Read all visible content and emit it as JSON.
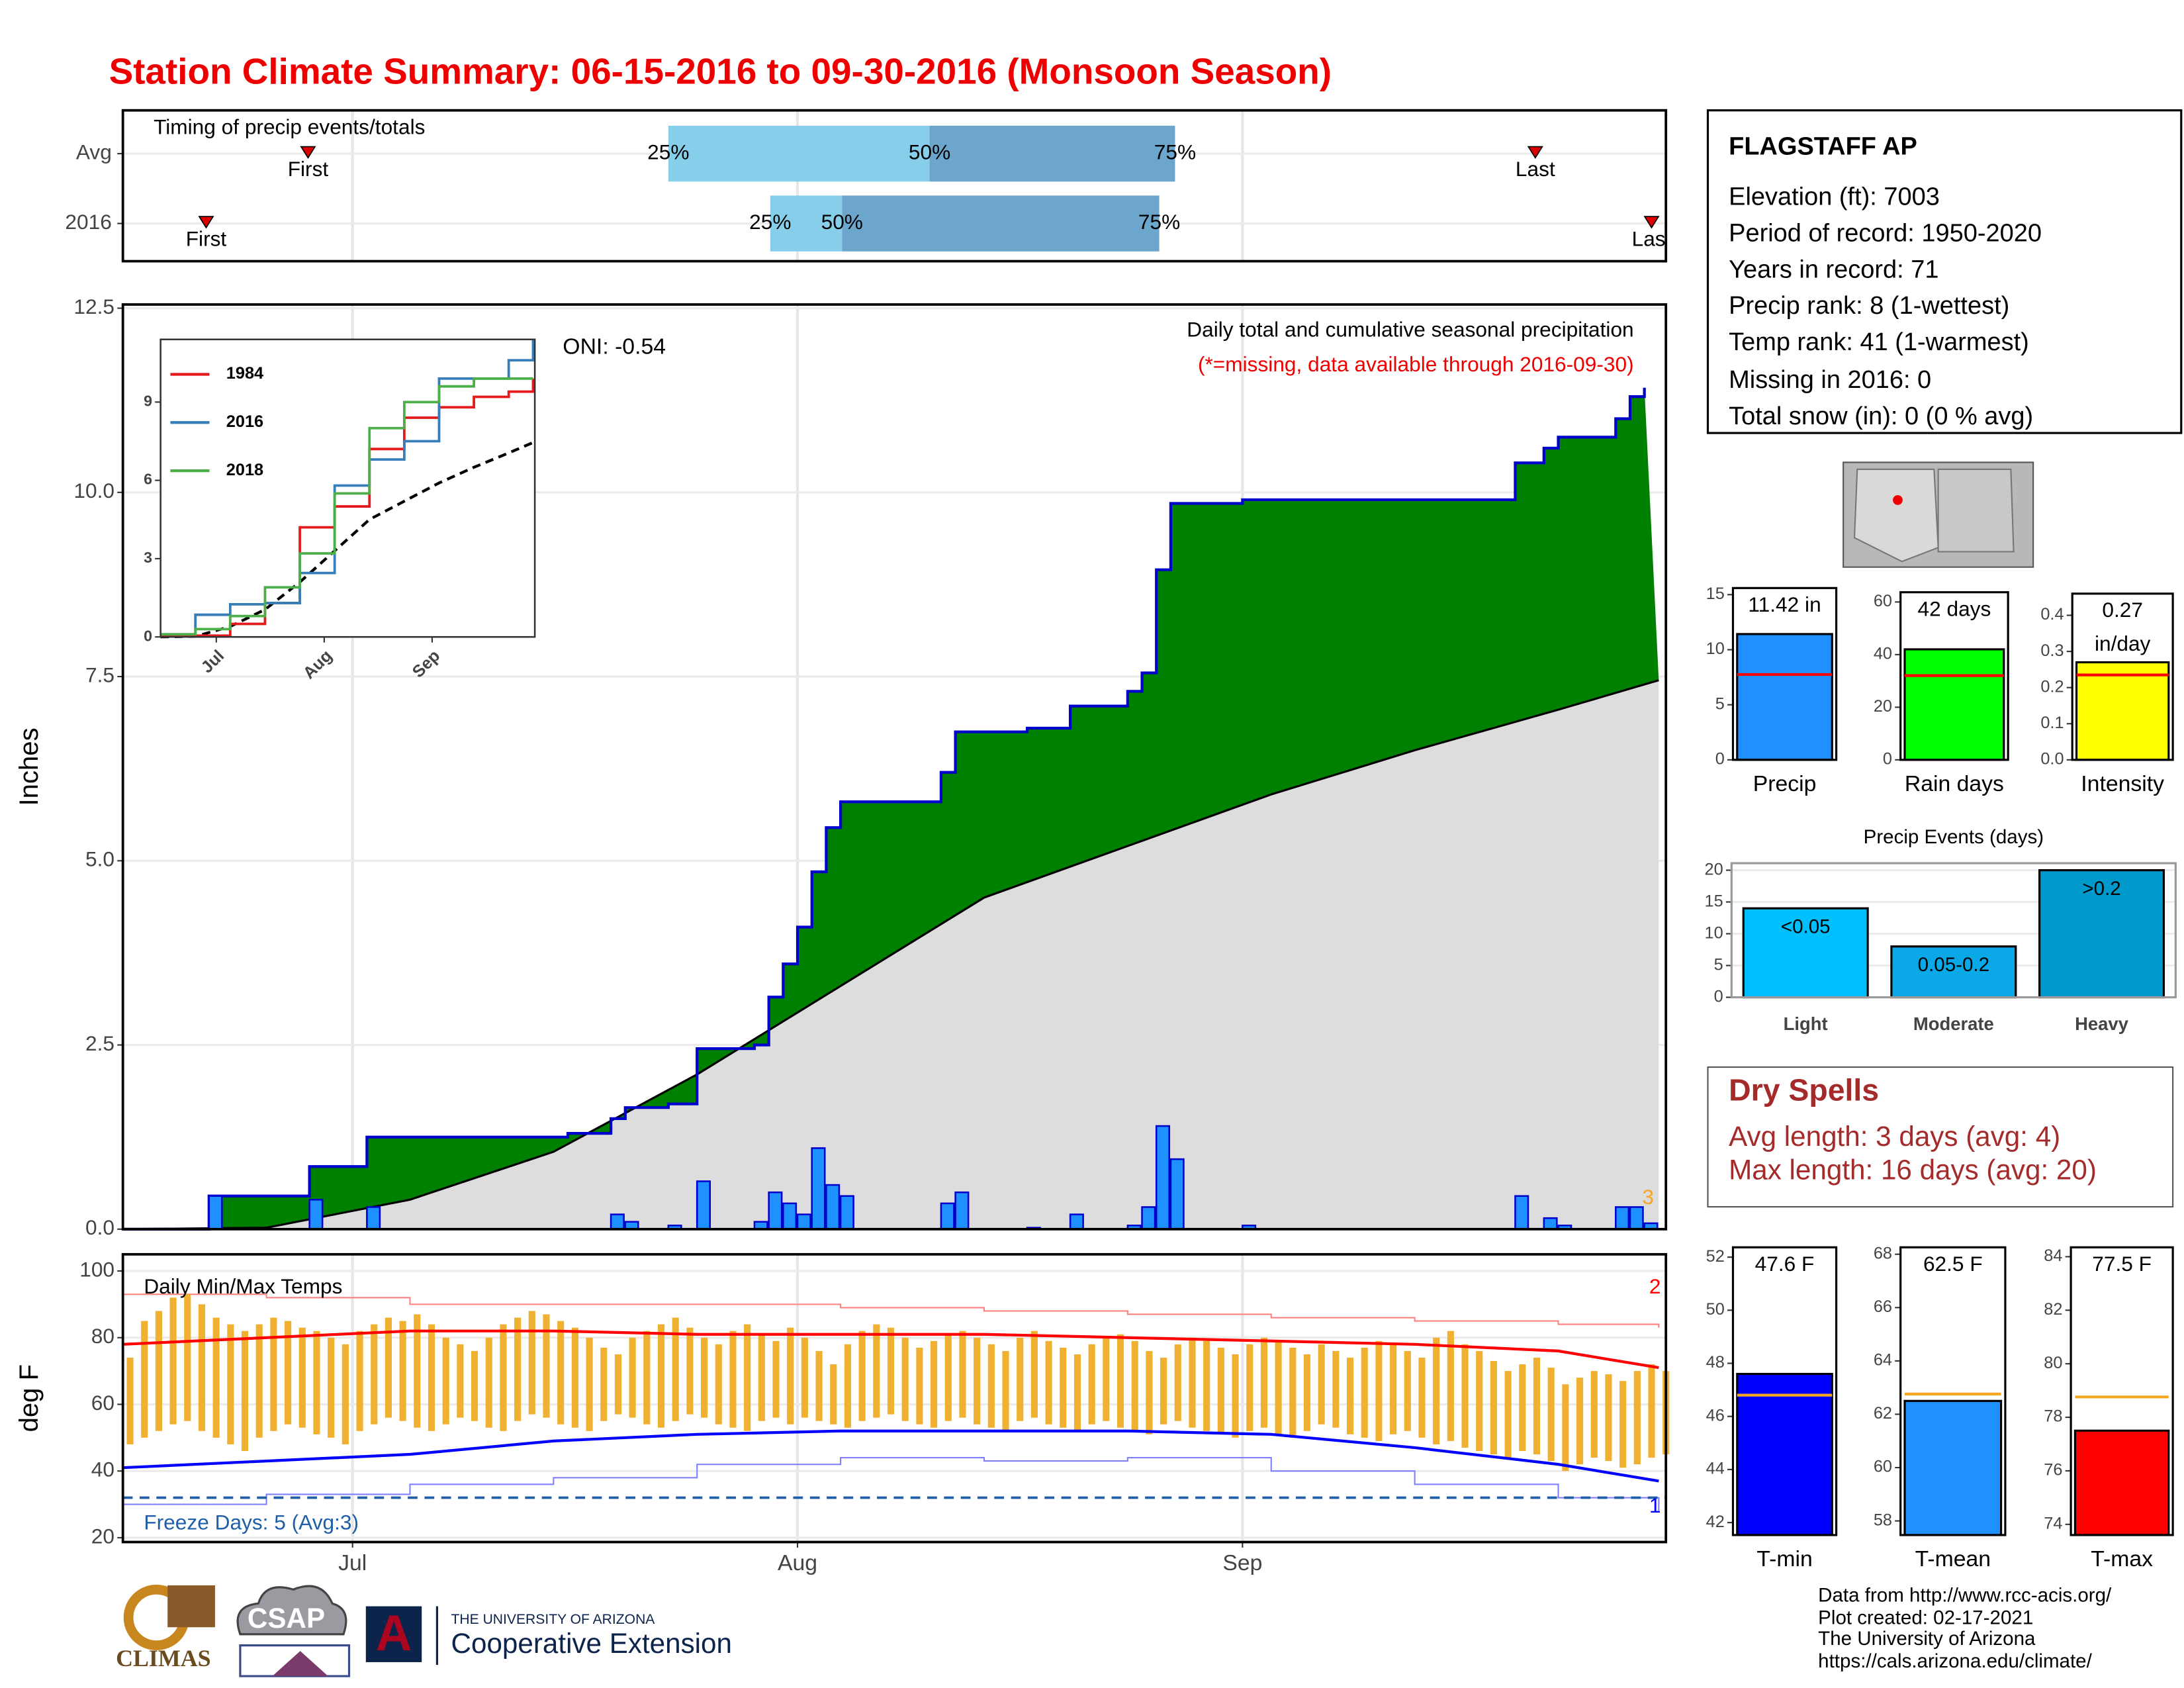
{
  "title": "Station Climate Summary: 06-15-2016 to 09-30-2016 (Monsoon Season)",
  "station_info": {
    "name": "FLAGSTAFF AP",
    "lines": [
      "Elevation (ft): 7003",
      "Period of record: 1950-2020",
      "Years in record: 71",
      "Precip rank: 8 (1-wettest)",
      "Temp rank: 41 (1-warmest)",
      "Missing in 2016: 0",
      "Total snow (in): 0 (0 % avg)"
    ]
  },
  "dry_spells": {
    "title": "Dry Spells",
    "lines": [
      "Avg length: 3 days (avg: 4)",
      "Max length: 16 days (avg: 20)"
    ]
  },
  "footer": {
    "logos": [
      "CLIMAS",
      "CSAP",
      "A"
    ],
    "university": "THE UNIVERSITY OF ARIZONA",
    "extension": "Cooperative Extension",
    "credits": [
      "Data from http://www.rcc-acis.org/",
      "Plot created: 02-17-2021",
      "The University of Arizona",
      "https://cals.arizona.edu/climate/"
    ]
  },
  "chart_data": [
    {
      "type": "timeline",
      "title": "Timing of precip events/totals",
      "xlim": [
        0,
        107.5
      ],
      "categories": [
        "Avg",
        "2016"
      ],
      "rows": [
        {
          "first": 12.9,
          "q25": 38,
          "q50": 56.2,
          "q75": 73.3,
          "last": 98.4
        },
        {
          "first": 5.8,
          "q25": 45.1,
          "q50": 50.1,
          "q75": 72.2,
          "last": 106.5
        }
      ],
      "markers": {
        "first": "First",
        "last": "Last",
        "q25": "25%",
        "q50": "50%",
        "q75": "75%"
      },
      "colors": {
        "early": "#87ceeb",
        "late": "#6ca6cd",
        "marker": "#dd0000"
      }
    },
    {
      "type": "area",
      "title": "Daily total and cumulative seasonal precipitation",
      "subtitle": "(*=missing, data available through 2016-09-30)",
      "annotation": "ONI: -0.54",
      "missing_note": "3",
      "ylabel": "Inches",
      "xlim": [
        0,
        107.5
      ],
      "ylim": [
        0,
        12.55
      ],
      "yticks": [
        {
          "value": 0,
          "label": "0.0"
        },
        2.5,
        {
          "value": 5,
          "label": "5.0"
        },
        7.5,
        {
          "value": 10,
          "label": "10.0"
        },
        12.5
      ],
      "grid": true,
      "above_color": "#008000",
      "cumulative": {
        "color": "#0000cc",
        "x": [
          0,
          6,
          13,
          17,
          31,
          34,
          35,
          38,
          40,
          44,
          45,
          46,
          47,
          48,
          49,
          50,
          57,
          58,
          63,
          66,
          70,
          71,
          72,
          73,
          78,
          97,
          99,
          100,
          104,
          105,
          106
        ],
        "values": [
          0,
          0.45,
          0.85,
          1.25,
          1.3,
          1.5,
          1.65,
          1.7,
          2.45,
          2.5,
          3.15,
          3.6,
          4.1,
          4.85,
          5.45,
          5.8,
          6.2,
          6.75,
          6.8,
          7.1,
          7.3,
          7.55,
          8.95,
          9.85,
          9.9,
          10.4,
          10.6,
          10.75,
          11.0,
          11.3,
          11.42
        ]
      },
      "average": {
        "color": "#dddddd",
        "x": [
          0,
          10,
          20,
          30,
          40,
          50,
          60,
          70,
          80,
          90,
          100,
          107
        ],
        "values": [
          0,
          0.02,
          0.4,
          1.05,
          2.1,
          3.3,
          4.5,
          5.2,
          5.9,
          6.5,
          7.05,
          7.45
        ]
      },
      "daily": {
        "color": "#1e90ff",
        "x": [
          6,
          13,
          17,
          34,
          35,
          38,
          40,
          44,
          45,
          46,
          47,
          48,
          49,
          50,
          57,
          58,
          63,
          66,
          70,
          71,
          72,
          73,
          78,
          97,
          99,
          100,
          104,
          105,
          106
        ],
        "values": [
          0.45,
          0.4,
          0.3,
          0.2,
          0.1,
          0.05,
          0.65,
          0.1,
          0.5,
          0.35,
          0.2,
          1.1,
          0.6,
          0.45,
          0.35,
          0.5,
          0.02,
          0.2,
          0.05,
          0.3,
          1.4,
          0.95,
          0.05,
          0.45,
          0.15,
          0.05,
          0.3,
          0.3,
          0.08
        ]
      }
    },
    {
      "type": "line",
      "xlim": [
        0,
        107.5
      ],
      "ylim": [
        0,
        11.4
      ],
      "xticks": [
        {
          "value": 16,
          "label": "Jul"
        },
        {
          "value": 47,
          "label": "Aug"
        },
        {
          "value": 78,
          "label": "Sep"
        }
      ],
      "yticks": [
        0,
        3,
        6,
        9
      ],
      "x": [
        0,
        10,
        20,
        30,
        40,
        50,
        60,
        70,
        80,
        90,
        100,
        107
      ],
      "series": [
        {
          "name": "1984",
          "color": "#e41a1c",
          "values": [
            0.05,
            0.05,
            0.5,
            1.3,
            4.2,
            5.0,
            7.2,
            8.4,
            8.8,
            9.2,
            9.4,
            9.9
          ]
        },
        {
          "name": "2016",
          "color": "#377eb8",
          "values": [
            0.1,
            0.85,
            1.25,
            1.3,
            2.45,
            5.8,
            6.8,
            7.5,
            9.9,
            9.9,
            10.6,
            11.42
          ]
        },
        {
          "name": "2018",
          "color": "#4daf4a",
          "values": [
            0.1,
            0.3,
            0.8,
            1.9,
            3.2,
            5.5,
            8.0,
            9.0,
            9.6,
            9.9,
            9.9,
            9.9
          ]
        }
      ],
      "average": {
        "color": "#000000",
        "values": [
          0,
          0.02,
          0.4,
          1.05,
          2.1,
          3.3,
          4.5,
          5.2,
          5.9,
          6.5,
          7.05,
          7.45
        ]
      }
    },
    {
      "type": "range",
      "title": "Daily Min/Max Temps",
      "ylabel": "deg F",
      "freeze_text": "Freeze Days: 5 (Avg:3)",
      "record_high_count": "2",
      "record_low_count": "1",
      "xlim": [
        0,
        107.5
      ],
      "ylim": [
        18.7,
        105
      ],
      "xticks": [
        {
          "value": 16,
          "label": "Jul"
        },
        {
          "value": 47,
          "label": "Aug"
        },
        {
          "value": 78,
          "label": "Sep"
        }
      ],
      "yticks": [
        20,
        40,
        60,
        80,
        100
      ],
      "grid": true,
      "bar_color": "#f0b030",
      "freeze_line": 32,
      "freeze_color": "#1f5ea8",
      "x": [
        0,
        1,
        2,
        3,
        4,
        5,
        6,
        7,
        8,
        9,
        10,
        11,
        12,
        13,
        14,
        15,
        16,
        17,
        18,
        19,
        20,
        21,
        22,
        23,
        24,
        25,
        26,
        27,
        28,
        29,
        30,
        31,
        32,
        33,
        34,
        35,
        36,
        37,
        38,
        39,
        40,
        41,
        42,
        43,
        44,
        45,
        46,
        47,
        48,
        49,
        50,
        51,
        52,
        53,
        54,
        55,
        56,
        57,
        58,
        59,
        60,
        61,
        62,
        63,
        64,
        65,
        66,
        67,
        68,
        69,
        70,
        71,
        72,
        73,
        74,
        75,
        76,
        77,
        78,
        79,
        80,
        81,
        82,
        83,
        84,
        85,
        86,
        87,
        88,
        89,
        90,
        91,
        92,
        93,
        94,
        95,
        96,
        97,
        98,
        99,
        100,
        101,
        102,
        103,
        104,
        105,
        106,
        107
      ],
      "max": [
        74,
        85,
        88,
        92,
        93,
        90,
        86,
        84,
        82,
        84,
        86,
        85,
        83,
        82,
        80,
        78,
        82,
        84,
        86,
        85,
        87,
        84,
        80,
        78,
        76,
        80,
        84,
        86,
        88,
        87,
        85,
        83,
        80,
        77,
        75,
        80,
        82,
        84,
        86,
        83,
        80,
        78,
        82,
        84,
        81,
        79,
        83,
        80,
        76,
        72,
        78,
        82,
        84,
        83,
        80,
        77,
        79,
        81,
        82,
        80,
        78,
        76,
        80,
        82,
        79,
        77,
        75,
        78,
        80,
        81,
        79,
        76,
        74,
        78,
        80,
        79,
        77,
        75,
        78,
        80,
        79,
        77,
        75,
        78,
        76,
        74,
        77,
        79,
        78,
        76,
        74,
        80,
        82,
        78,
        76,
        73,
        70,
        72,
        74,
        71,
        66,
        68,
        70,
        69,
        67,
        70,
        72,
        70
      ],
      "min": [
        48,
        50,
        52,
        54,
        55,
        52,
        50,
        48,
        46,
        50,
        52,
        54,
        53,
        51,
        50,
        48,
        52,
        54,
        56,
        55,
        53,
        52,
        54,
        56,
        55,
        53,
        52,
        55,
        57,
        56,
        54,
        53,
        52,
        55,
        57,
        56,
        54,
        53,
        55,
        57,
        56,
        54,
        53,
        52,
        55,
        56,
        54,
        56,
        55,
        54,
        53,
        55,
        56,
        57,
        55,
        54,
        53,
        55,
        56,
        54,
        53,
        52,
        55,
        56,
        54,
        53,
        52,
        54,
        55,
        53,
        52,
        51,
        54,
        55,
        53,
        52,
        51,
        50,
        52,
        53,
        51,
        50,
        52,
        54,
        53,
        51,
        50,
        49,
        51,
        52,
        50,
        48,
        49,
        47,
        46,
        45,
        44,
        46,
        45,
        43,
        40,
        42,
        44,
        43,
        41,
        42,
        44,
        45
      ],
      "lines": {
        "x": [
          0,
          10,
          20,
          30,
          40,
          50,
          60,
          70,
          80,
          90,
          100,
          107
        ],
        "avg_max": {
          "color": "#ff0000",
          "values": [
            78,
            80,
            82,
            82,
            81,
            81,
            81,
            80,
            79,
            78,
            76,
            71
          ]
        },
        "avg_min": {
          "color": "#0000ff",
          "values": [
            41,
            43,
            45,
            49,
            51,
            52,
            52,
            52,
            51,
            47,
            42,
            37
          ]
        },
        "record_max": {
          "color": "#ff8080",
          "values": [
            93,
            92,
            90,
            90,
            90,
            89,
            88,
            87,
            86,
            85,
            84,
            83
          ]
        },
        "record_min": {
          "color": "#8080ff",
          "values": [
            30,
            33,
            36,
            38,
            42,
            44,
            43,
            44,
            40,
            36,
            32,
            28
          ]
        }
      }
    },
    {
      "type": "bar",
      "categories": [
        "Precip"
      ],
      "values": [
        11.42
      ],
      "value_labels": [
        "11.42 in"
      ],
      "average": [
        7.75
      ],
      "avg_color": "#ff0000",
      "colors": [
        "#1e90ff"
      ],
      "ylim": [
        0,
        15.6
      ],
      "yticks": [
        0,
        5,
        10,
        15
      ]
    },
    {
      "type": "bar",
      "categories": [
        "Rain days"
      ],
      "values": [
        42
      ],
      "value_labels": [
        "42 days"
      ],
      "average": [
        32
      ],
      "avg_color": "#ff0000",
      "colors": [
        "#00ff00"
      ],
      "ylim": [
        0,
        63.7
      ],
      "yticks": [
        0,
        20,
        40,
        60
      ]
    },
    {
      "type": "bar",
      "categories": [
        "Intensity"
      ],
      "values": [
        0.27
      ],
      "value_labels": [
        "0.27 in/day"
      ],
      "average": [
        0.235
      ],
      "avg_color": "#ff0000",
      "colors": [
        "#ffff00"
      ],
      "ylim": [
        0,
        0.46
      ],
      "yticks": [
        {
          "value": 0,
          "label": "0.0"
        },
        0.1,
        0.2,
        0.3,
        0.4
      ]
    },
    {
      "type": "bar",
      "title": "Precip Events (days)",
      "categories": [
        "Light",
        "Moderate",
        "Heavy"
      ],
      "values": [
        14,
        8,
        20
      ],
      "ranges": [
        "<0.05",
        "0.05-0.2",
        ">0.2"
      ],
      "colors": [
        "#00bfff",
        "#0aa8e6",
        "#0099cc"
      ],
      "ylim": [
        0,
        21.1
      ],
      "yticks": [
        0,
        5,
        10,
        15,
        20
      ],
      "grid": true
    },
    {
      "type": "bar",
      "categories": [
        "T-min"
      ],
      "values": [
        47.6
      ],
      "value_labels": [
        "47.6 F"
      ],
      "average": [
        46.8
      ],
      "avg_color": "#f5a623",
      "colors": [
        "#0000ff"
      ],
      "ylim": [
        41.53,
        52.37
      ],
      "yticks": [
        42,
        44,
        46,
        48,
        50,
        52
      ]
    },
    {
      "type": "bar",
      "categories": [
        "T-mean"
      ],
      "values": [
        62.5
      ],
      "value_labels": [
        "62.5 F"
      ],
      "average": [
        62.76
      ],
      "avg_color": "#f5a623",
      "colors": [
        "#1e90ff"
      ],
      "ylim": [
        57.47,
        68.26
      ],
      "yticks": [
        58,
        60,
        62,
        64,
        66,
        68
      ]
    },
    {
      "type": "bar",
      "categories": [
        "T-max"
      ],
      "values": [
        77.5
      ],
      "value_labels": [
        "77.5 F"
      ],
      "average": [
        78.76
      ],
      "avg_color": "#f5a623",
      "colors": [
        "#ff0000"
      ],
      "ylim": [
        73.6,
        84.35
      ],
      "yticks": [
        74,
        76,
        78,
        80,
        82,
        84
      ]
    }
  ]
}
